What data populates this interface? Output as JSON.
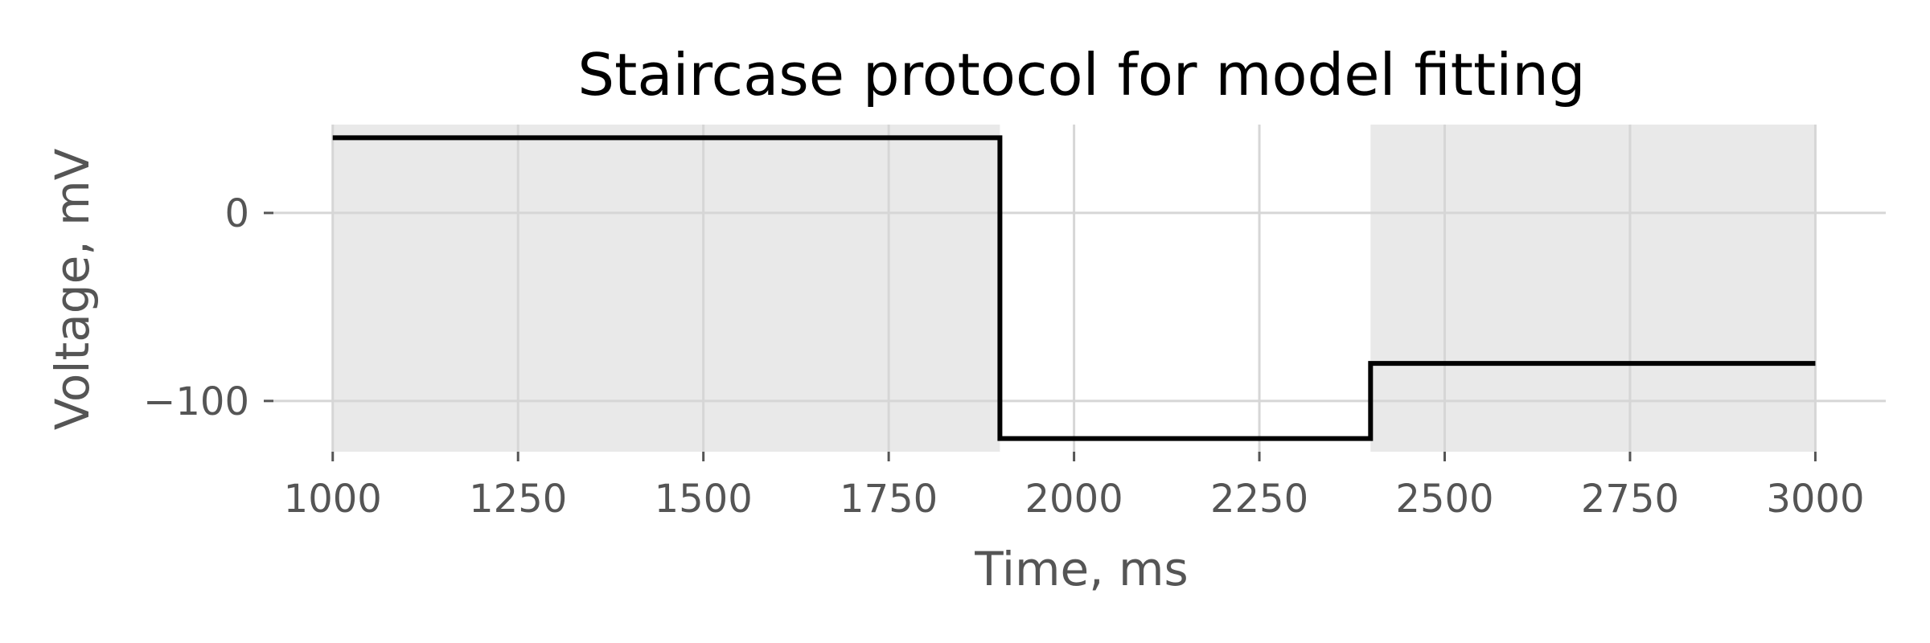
{
  "chart_data": {
    "type": "line",
    "title": "Staircase protocol for model fitting",
    "xlabel": "Time, ms",
    "ylabel": "Voltage, mV",
    "xlim": [
      920,
      3095
    ],
    "ylim": [
      -127,
      47
    ],
    "xticks": [
      1000,
      1250,
      1500,
      1750,
      2000,
      2250,
      2500,
      2750,
      3000
    ],
    "yticks": [
      0,
      -100
    ],
    "grid": true,
    "shaded_regions": [
      {
        "x0": 1000,
        "x1": 1900,
        "color": "#e9e9e9"
      },
      {
        "x0": 2400,
        "x1": 3000,
        "color": "#e9e9e9"
      }
    ],
    "series": [
      {
        "color": "#000000",
        "x": [
          1000,
          1900,
          1900,
          2400,
          2400,
          3000
        ],
        "y": [
          40,
          40,
          -120,
          -120,
          -80,
          -80
        ]
      }
    ]
  }
}
